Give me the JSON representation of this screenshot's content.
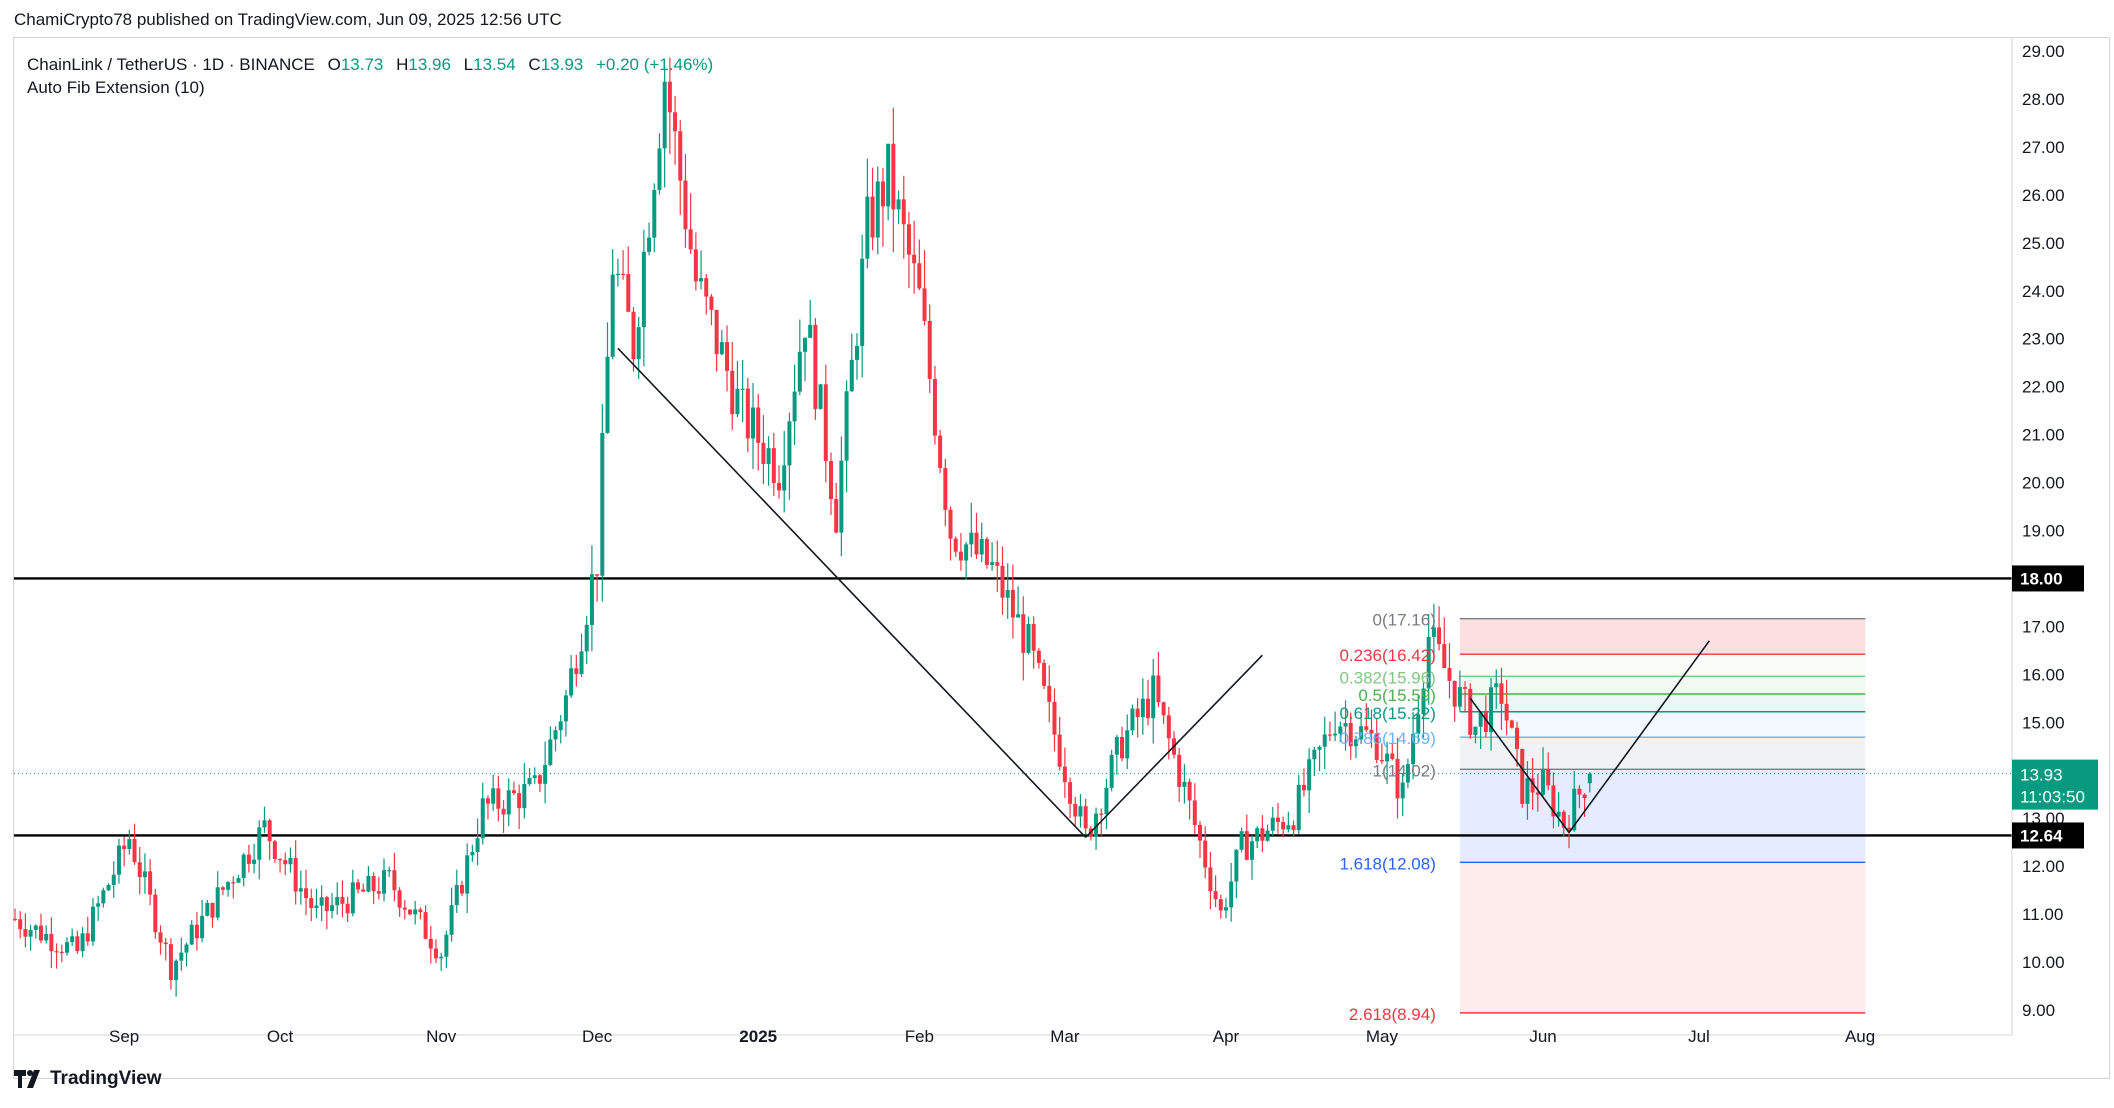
{
  "published_by": "ChamiCrypto78 published on TradingView.com, Jun 09, 2025 12:56 UTC",
  "brand": {
    "name": "TradingView",
    "logo_icon": "tradingview-logo-icon"
  },
  "legend": {
    "symbol": "ChainLink / TetherUS · 1D · BINANCE",
    "open_label": "O",
    "open": "13.73",
    "high_label": "H",
    "high": "13.96",
    "low_label": "L",
    "low": "13.54",
    "close_label": "C",
    "close": "13.93",
    "change": "+0.20 (+1.46%)"
  },
  "indicator": "Auto Fib Extension (10)",
  "colors": {
    "up": "#089981",
    "down": "#f23645",
    "text": "#131722",
    "grid_border": "#d1d4dc",
    "last_price": "#089981"
  },
  "chart_data": {
    "type": "candlestick",
    "title": "ChainLink / TetherUS · 1D · BINANCE",
    "y_axis": {
      "min": 9.0,
      "max": 29.0,
      "ticks": [
        "29.00",
        "28.00",
        "27.00",
        "26.00",
        "25.00",
        "24.00",
        "23.00",
        "22.00",
        "21.00",
        "20.00",
        "19.00",
        "18.00",
        "17.00",
        "16.00",
        "15.00",
        "14.00",
        "13.00",
        "12.00",
        "11.00",
        "10.00",
        "9.00"
      ]
    },
    "x_axis": {
      "labels": [
        "Sep",
        "Oct",
        "Nov",
        "Dec",
        "2025",
        "Feb",
        "Mar",
        "Apr",
        "May",
        "Jun",
        "Jul",
        "Aug"
      ],
      "label_days": [
        21,
        51,
        82,
        112,
        143,
        174,
        202,
        233,
        263,
        294,
        324,
        355
      ],
      "start": "2024-08-12",
      "end": "2025-08-26"
    },
    "price_points": [
      {
        "day": 0,
        "price": 10.9
      },
      {
        "day": 12,
        "price": 10.2
      },
      {
        "day": 22,
        "price": 12.6
      },
      {
        "day": 30,
        "price": 9.9
      },
      {
        "day": 48,
        "price": 12.8
      },
      {
        "day": 58,
        "price": 11.0
      },
      {
        "day": 72,
        "price": 11.7
      },
      {
        "day": 82,
        "price": 10.2
      },
      {
        "day": 90,
        "price": 13.2
      },
      {
        "day": 100,
        "price": 13.6
      },
      {
        "day": 106,
        "price": 15.5
      },
      {
        "day": 112,
        "price": 18.4
      },
      {
        "day": 115,
        "price": 24.6
      },
      {
        "day": 119,
        "price": 22.9
      },
      {
        "day": 125,
        "price": 28.5
      },
      {
        "day": 131,
        "price": 24.2
      },
      {
        "day": 140,
        "price": 21.4
      },
      {
        "day": 147,
        "price": 20.3
      },
      {
        "day": 152,
        "price": 23.5
      },
      {
        "day": 158,
        "price": 19.4
      },
      {
        "day": 164,
        "price": 25.3
      },
      {
        "day": 168,
        "price": 26.4
      },
      {
        "day": 174,
        "price": 23.8
      },
      {
        "day": 180,
        "price": 19.0
      },
      {
        "day": 188,
        "price": 18.2
      },
      {
        "day": 195,
        "price": 16.6
      },
      {
        "day": 201,
        "price": 14.4
      },
      {
        "day": 206,
        "price": 12.6
      },
      {
        "day": 213,
        "price": 14.6
      },
      {
        "day": 219,
        "price": 15.6
      },
      {
        "day": 225,
        "price": 13.6
      },
      {
        "day": 232,
        "price": 11.0
      },
      {
        "day": 236,
        "price": 12.4
      },
      {
        "day": 246,
        "price": 13.1
      },
      {
        "day": 254,
        "price": 15.1
      },
      {
        "day": 262,
        "price": 14.6
      },
      {
        "day": 267,
        "price": 13.5
      },
      {
        "day": 272,
        "price": 16.8
      },
      {
        "day": 276,
        "price": 15.9
      },
      {
        "day": 281,
        "price": 14.9
      },
      {
        "day": 286,
        "price": 15.6
      },
      {
        "day": 290,
        "price": 13.6
      },
      {
        "day": 294,
        "price": 13.7
      },
      {
        "day": 298,
        "price": 12.9
      },
      {
        "day": 303,
        "price": 13.93
      }
    ],
    "horizontal_levels": [
      {
        "price": 18.0,
        "label": "18.00"
      },
      {
        "price": 12.64,
        "label": "12.64"
      }
    ],
    "last_price": {
      "price": 13.93,
      "label": "13.93",
      "countdown": "11:03:50"
    },
    "trend_lines": [
      {
        "from": {
          "day": 116,
          "price": 22.8
        },
        "to": {
          "day": 206,
          "price": 12.6
        }
      },
      {
        "from": {
          "day": 206,
          "price": 12.6
        },
        "to": {
          "day": 240,
          "price": 16.4
        }
      },
      {
        "from": {
          "day": 280,
          "price": 15.5
        },
        "to": {
          "day": 299,
          "price": 12.7
        }
      },
      {
        "from": {
          "day": 299,
          "price": 12.7
        },
        "to": {
          "day": 326,
          "price": 16.7
        }
      }
    ],
    "fib_extension": {
      "start_day": 278,
      "end_day": 356,
      "levels": [
        {
          "ratio": "0",
          "price": 17.16,
          "text": "0(17.16)",
          "color": "#787b86"
        },
        {
          "ratio": "0.236",
          "price": 16.42,
          "text": "0.236(16.42)",
          "color": "#f23645"
        },
        {
          "ratio": "0.382",
          "price": 15.96,
          "text": "0.382(15.96)",
          "color": "#81c784"
        },
        {
          "ratio": "0.5",
          "price": 15.59,
          "text": "0.5(15.59)",
          "color": "#4caf50"
        },
        {
          "ratio": "0.618",
          "price": 15.22,
          "text": "0.618(15.22)",
          "color": "#089981"
        },
        {
          "ratio": "0.786",
          "price": 14.69,
          "text": "0.786(14.69)",
          "color": "#64b5f6"
        },
        {
          "ratio": "1",
          "price": 14.02,
          "text": "1(14.02)",
          "color": "#787b86"
        },
        {
          "ratio": "1.618",
          "price": 12.08,
          "text": "1.618(12.08)",
          "color": "#2962ff"
        },
        {
          "ratio": "2.618",
          "price": 8.94,
          "text": "2.618(8.94)",
          "color": "#f23645"
        }
      ]
    }
  }
}
